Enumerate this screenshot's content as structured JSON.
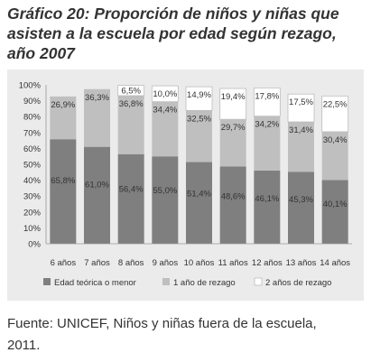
{
  "title_lines": [
    "Gráfico 20: Proporción de niños y niñas que",
    "asisten a la escuela por edad según rezago,",
    "año 2007"
  ],
  "source_lines": [
    "Fuente: UNICEF, Niños y niñas fuera de la escuela,",
    "2011."
  ],
  "chart_data": {
    "type": "bar",
    "stacked": true,
    "title": "Gráfico 20: Proporción de niños y niñas que asisten a la escuela por edad según rezago, año 2007",
    "categories": [
      "6 años",
      "7 años",
      "8 años",
      "9 años",
      "10 años",
      "11 años",
      "12 años",
      "13 años",
      "14 años"
    ],
    "series": [
      {
        "name": "Edad teórica o menor",
        "color": "#7f7f7f",
        "values": [
          65.8,
          61.0,
          56.4,
          55.0,
          51.4,
          48.6,
          46.1,
          45.3,
          40.1
        ],
        "labels": [
          "65,8%",
          "61,0%",
          "56,4%",
          "55,0%",
          "51,4%",
          "48,6%",
          "46,1%",
          "45,3%",
          "40,1%"
        ]
      },
      {
        "name": "1 año de rezago",
        "color": "#bfbfbf",
        "values": [
          26.9,
          36.3,
          36.8,
          34.4,
          32.5,
          29.7,
          34.2,
          31.4,
          30.4
        ],
        "labels": [
          "26,9%",
          "36,3%",
          "36,8%",
          "34,4%",
          "32,5%",
          "29,7%",
          "34,2%",
          "31,4%",
          "30,4%"
        ]
      },
      {
        "name": "2 años de rezago",
        "color": "#ffffff",
        "values": [
          0,
          0,
          6.5,
          10.0,
          14.9,
          19.4,
          17.8,
          17.5,
          22.5
        ],
        "labels": [
          "",
          "",
          "6,5%",
          "10,0%",
          "14,9%",
          "19,4%",
          "17,8%",
          "17,5%",
          "22,5%"
        ]
      }
    ],
    "y_ticks": [
      "0%",
      "10%",
      "20%",
      "30%",
      "40%",
      "50%",
      "60%",
      "70%",
      "80%",
      "90%",
      "100%"
    ],
    "ylim": [
      0,
      100
    ],
    "xlabel": "",
    "ylabel": "",
    "grid": false,
    "legend_position": "bottom"
  }
}
